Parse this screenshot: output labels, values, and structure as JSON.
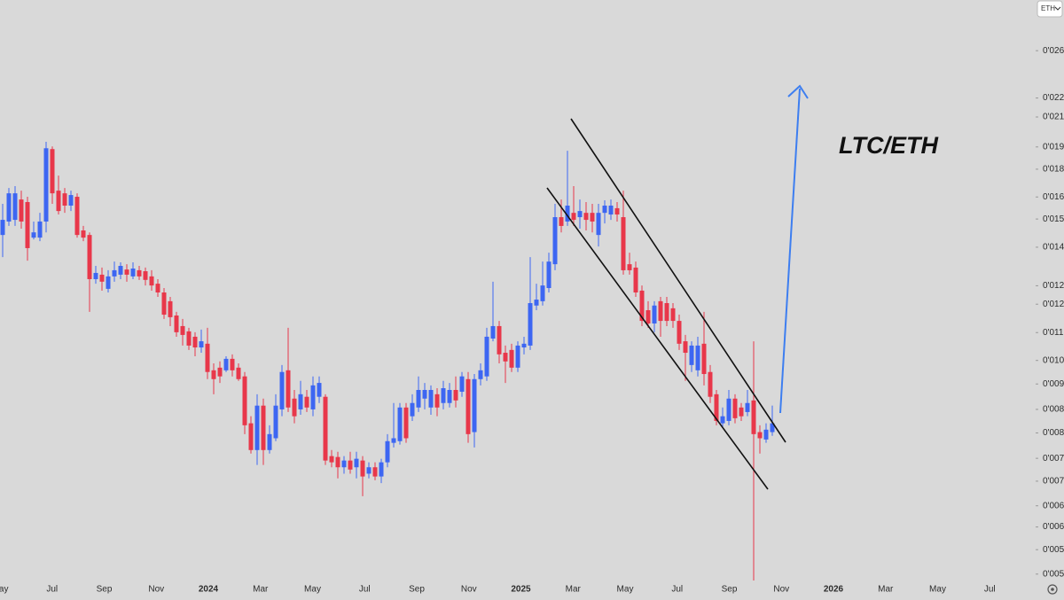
{
  "chart_data": {
    "type": "candlestick",
    "annotation": "LTC/ETH",
    "symbol_button": "ETH",
    "log_scale": true,
    "colors": {
      "up": "#3d66f2",
      "down": "#e8374a"
    },
    "ylim": [
      0.0049,
      0.0305
    ],
    "yticks": [
      {
        "value": 0.026,
        "label": "0'026"
      },
      {
        "value": 0.0224,
        "label": "0'022"
      },
      {
        "value": 0.0211,
        "label": "0'021"
      },
      {
        "value": 0.0192,
        "label": "0'019"
      },
      {
        "value": 0.0179,
        "label": "0'018"
      },
      {
        "value": 0.0164,
        "label": "0'016"
      },
      {
        "value": 0.0153,
        "label": "0'015"
      },
      {
        "value": 0.014,
        "label": "0'014"
      },
      {
        "value": 0.0124,
        "label": "0'012"
      },
      {
        "value": 0.0117,
        "label": "0'012"
      },
      {
        "value": 0.0107,
        "label": "0'011"
      },
      {
        "value": 0.0098,
        "label": "0'010"
      },
      {
        "value": 0.0091,
        "label": "0'009"
      },
      {
        "value": 0.0084,
        "label": "0'008"
      },
      {
        "value": 0.0078,
        "label": "0'008"
      },
      {
        "value": 0.0072,
        "label": "0'007"
      },
      {
        "value": 0.0067,
        "label": "0'007"
      },
      {
        "value": 0.0062,
        "label": "0'006"
      },
      {
        "value": 0.0058,
        "label": "0'006"
      },
      {
        "value": 0.0054,
        "label": "0'005"
      },
      {
        "value": 0.005,
        "label": "0'005"
      }
    ],
    "x_labels": [
      "May",
      "Jul",
      "Sep",
      "Nov",
      "2024",
      "Mar",
      "May",
      "Jul",
      "Sep",
      "Nov",
      "2025",
      "Mar",
      "May",
      "Jul",
      "Sep",
      "Nov",
      "2026",
      "Mar",
      "May",
      "Jul"
    ],
    "open": [
      0.01455,
      0.01518,
      0.01526,
      0.01627,
      0.01614,
      0.01443,
      0.01443,
      0.01518,
      0.01907,
      0.01673,
      0.01659,
      0.01596,
      0.01641,
      0.01476,
      0.01455,
      0.01266,
      0.01284,
      0.01228,
      0.01277,
      0.01284,
      0.01305,
      0.01277,
      0.01302,
      0.01298,
      0.01277,
      0.01248,
      0.01214,
      0.01181,
      0.01129,
      0.01092,
      0.01074,
      0.01056,
      0.01021,
      0.01033,
      0.0095,
      0.00958,
      0.0095,
      0.00985,
      0.00958,
      0.00932,
      0.00804,
      0.00739,
      0.0085,
      0.00739,
      0.00767,
      0.0084,
      0.0095,
      0.00869,
      0.0084,
      0.00874,
      0.0084,
      0.00874,
      0.00874,
      0.00725,
      0.00723,
      0.007,
      0.00715,
      0.007,
      0.00715,
      0.00686,
      0.007,
      0.0068,
      0.00711,
      0.00756,
      0.0076,
      0.00845,
      0.00822,
      0.00845,
      0.00869,
      0.00845,
      0.00881,
      0.00857,
      0.00857,
      0.00893,
      0.00888,
      0.00924,
      0.00782,
      0.00924,
      0.00932,
      0.0105,
      0.01092,
      0.01004,
      0.01013,
      0.00958,
      0.01021,
      0.01027,
      0.01165,
      0.01181,
      0.01231,
      0.01327,
      0.01539,
      0.01518,
      0.0156,
      0.01539,
      0.0156,
      0.0156,
      0.01455,
      0.0156,
      0.01552,
      0.01583,
      0.01539,
      0.01327,
      0.01313,
      0.01221,
      0.01148,
      0.01101,
      0.01181,
      0.01174,
      0.01155,
      0.0111,
      0.01041,
      0.00966,
      0.0095,
      0.01033,
      0.00945,
      0.00881,
      0.00804,
      0.0081,
      0.00869,
      0.00845,
      0.00833,
      0.00864,
      0.00782,
      0.00764,
      0.00782
    ],
    "high": [
      0.01605,
      0.01687,
      0.01697,
      0.01673,
      0.01641,
      0.01518,
      0.0156,
      0.01951,
      0.01923,
      0.01754,
      0.01687,
      0.01673,
      0.01659,
      0.01497,
      0.01467,
      0.0132,
      0.01313,
      0.01302,
      0.01338,
      0.01335,
      0.01327,
      0.01335,
      0.0132,
      0.01313,
      0.01302,
      0.01266,
      0.01231,
      0.01197,
      0.01142,
      0.01117,
      0.01086,
      0.01071,
      0.0108,
      0.01086,
      0.00971,
      0.00977,
      0.00993,
      0.00999,
      0.00971,
      0.00945,
      0.00822,
      0.00881,
      0.00869,
      0.00799,
      0.00881,
      0.00966,
      0.01086,
      0.00893,
      0.00919,
      0.00893,
      0.00932,
      0.00932,
      0.00881,
      0.00739,
      0.00735,
      0.00725,
      0.00735,
      0.00735,
      0.00725,
      0.00711,
      0.00711,
      0.00719,
      0.00777,
      0.00857,
      0.00857,
      0.00857,
      0.00881,
      0.00932,
      0.00913,
      0.00906,
      0.00898,
      0.00919,
      0.00913,
      0.00932,
      0.00945,
      0.00945,
      0.00939,
      0.00971,
      0.01086,
      0.01256,
      0.0111,
      0.01027,
      0.01033,
      0.01041,
      0.01056,
      0.01357,
      0.01248,
      0.01338,
      0.01376,
      0.01605,
      0.01627,
      0.01897,
      0.01697,
      0.01627,
      0.01614,
      0.01605,
      0.01605,
      0.01623,
      0.01627,
      0.01614,
      0.01673,
      0.01376,
      0.01338,
      0.01241,
      0.01181,
      0.01181,
      0.01197,
      0.01197,
      0.01174,
      0.01132,
      0.01062,
      0.01041,
      0.01056,
      0.01142,
      0.00966,
      0.00893,
      0.00845,
      0.00893,
      0.00881,
      0.00857,
      0.00893,
      0.01041,
      0.00799,
      0.00804,
      0.0085
    ],
    "low": [
      0.01357,
      0.01497,
      0.01497,
      0.01484,
      0.01342,
      0.01435,
      0.01427,
      0.01467,
      0.01605,
      0.01552,
      0.0156,
      0.01569,
      0.01443,
      0.01427,
      0.01142,
      0.01248,
      0.01221,
      0.01214,
      0.01256,
      0.01266,
      0.01256,
      0.01266,
      0.01263,
      0.01241,
      0.01221,
      0.01197,
      0.01117,
      0.01092,
      0.01056,
      0.01027,
      0.01013,
      0.00993,
      0.01004,
      0.00924,
      0.00881,
      0.00913,
      0.00945,
      0.00932,
      0.00919,
      0.00777,
      0.00731,
      0.00705,
      0.00705,
      0.00731,
      0.0076,
      0.00822,
      0.00833,
      0.00804,
      0.00826,
      0.00833,
      0.00822,
      0.00857,
      0.00705,
      0.007,
      0.00676,
      0.00686,
      0.00686,
      0.00676,
      0.00639,
      0.00676,
      0.00672,
      0.00666,
      0.007,
      0.00745,
      0.00752,
      0.00756,
      0.0081,
      0.00833,
      0.0084,
      0.00826,
      0.00822,
      0.0084,
      0.00845,
      0.00845,
      0.00874,
      0.00756,
      0.00745,
      0.00906,
      0.00919,
      0.01041,
      0.00971,
      0.00913,
      0.00945,
      0.00945,
      0.00999,
      0.01013,
      0.01148,
      0.01165,
      0.01214,
      0.01302,
      0.01467,
      0.01497,
      0.01497,
      0.01484,
      0.01476,
      0.01467,
      0.01403,
      0.01509,
      0.01526,
      0.01518,
      0.01284,
      0.01284,
      0.01197,
      0.01092,
      0.01086,
      0.01071,
      0.01056,
      0.01092,
      0.01086,
      0.01013,
      0.00919,
      0.00945,
      0.00932,
      0.00906,
      0.00857,
      0.00799,
      0.00795,
      0.00799,
      0.00804,
      0.0081,
      0.00822,
      0.0049,
      0.00731,
      0.00756,
      0.00773
    ],
    "close": [
      0.01526,
      0.01659,
      0.01659,
      0.01518,
      0.01396,
      0.01467,
      0.01518,
      0.01912,
      0.01659,
      0.01569,
      0.01596,
      0.0165,
      0.01455,
      0.01443,
      0.01266,
      0.01291,
      0.01256,
      0.01277,
      0.01302,
      0.0132,
      0.01284,
      0.01309,
      0.01277,
      0.01263,
      0.01241,
      0.01214,
      0.01132,
      0.01123,
      0.01071,
      0.01062,
      0.01027,
      0.01021,
      0.01041,
      0.00945,
      0.00924,
      0.00932,
      0.00985,
      0.0095,
      0.00924,
      0.00799,
      0.00739,
      0.0085,
      0.00739,
      0.00777,
      0.0085,
      0.00945,
      0.00845,
      0.00822,
      0.00881,
      0.00845,
      0.00906,
      0.00913,
      0.00715,
      0.00711,
      0.007,
      0.00715,
      0.00695,
      0.00719,
      0.0068,
      0.007,
      0.0068,
      0.00711,
      0.0076,
      0.00767,
      0.00845,
      0.00767,
      0.00857,
      0.00893,
      0.00893,
      0.00893,
      0.00845,
      0.00898,
      0.00893,
      0.00864,
      0.00932,
      0.00777,
      0.00924,
      0.0095,
      0.01056,
      0.01092,
      0.00999,
      0.00977,
      0.00958,
      0.01027,
      0.01033,
      0.01174,
      0.01187,
      0.01241,
      0.01338,
      0.01539,
      0.01497,
      0.01596,
      0.01526,
      0.01569,
      0.01526,
      0.01518,
      0.0156,
      0.01596,
      0.01596,
      0.01552,
      0.01302,
      0.01302,
      0.01214,
      0.0111,
      0.01101,
      0.01165,
      0.0111,
      0.0111,
      0.0111,
      0.01033,
      0.01004,
      0.01027,
      0.01027,
      0.00939,
      0.00874,
      0.0081,
      0.00822,
      0.00869,
      0.00817,
      0.00822,
      0.00857,
      0.00777,
      0.00767,
      0.00788,
      0.00804
    ]
  }
}
